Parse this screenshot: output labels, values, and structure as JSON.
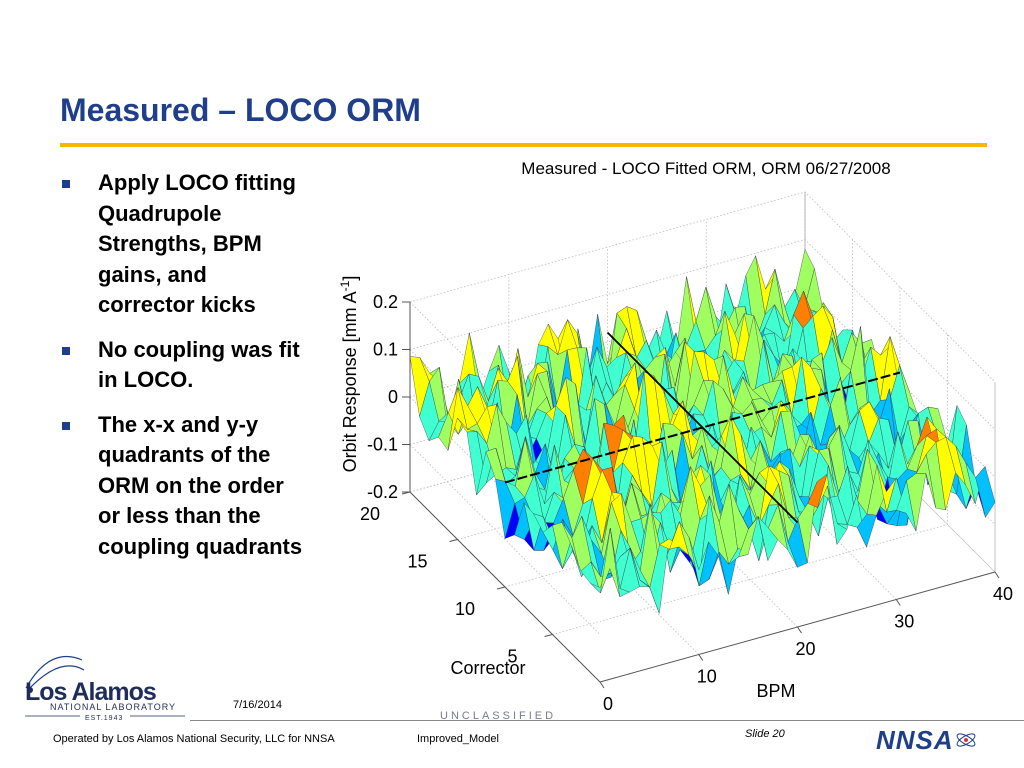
{
  "slide": {
    "title": "Measured – LOCO ORM",
    "bullets": [
      "Apply LOCO fitting\nQuadrupole\nStrengths, BPM\ngains, and\ncorrector kicks",
      "No coupling was fit\nin LOCO.",
      "The x-x and y-y\nquadrants of the\nORM on the order\nor less than the\ncoupling quadrants"
    ]
  },
  "chart_data": {
    "type": "surface",
    "title": "Measured - LOCO Fitted ORM, ORM 06/27/2008",
    "xlabel": "BPM",
    "ylabel": "Corrector",
    "zlabel": "Orbit Response [mm A",
    "zlabel_sup": "-1",
    "zlabel_end": "]",
    "xlim": [
      0,
      40
    ],
    "ylim": [
      0,
      20
    ],
    "zlim": [
      -0.2,
      0.2
    ],
    "x_ticks": [
      "0",
      "10",
      "20",
      "30",
      "40"
    ],
    "y_ticks": [
      "5",
      "10",
      "15",
      "20"
    ],
    "z_ticks": [
      "0.2",
      "0.1",
      "0",
      "-0.1",
      "-0.2"
    ],
    "colormap": [
      "#00008f",
      "#0000ff",
      "#00c0ff",
      "#40ffd0",
      "#a0ff60",
      "#ffff00",
      "#ff8000",
      "#800000"
    ]
  },
  "footer": {
    "date": "7/16/2014",
    "classification": "UNCLASSIFIED",
    "slide_number": "Slide 20",
    "operated_by": "Operated by Los Alamos National Security, LLC for NNSA",
    "file_name": "Improved_Model"
  },
  "logos": {
    "lanl_name": "Los Alamos",
    "lanl_sub": "NATIONAL LABORATORY",
    "lanl_est": "EST.1943",
    "nnsa": "NNSA"
  },
  "colors": {
    "title": "#1f3f8a",
    "rule": "#f5b800"
  }
}
